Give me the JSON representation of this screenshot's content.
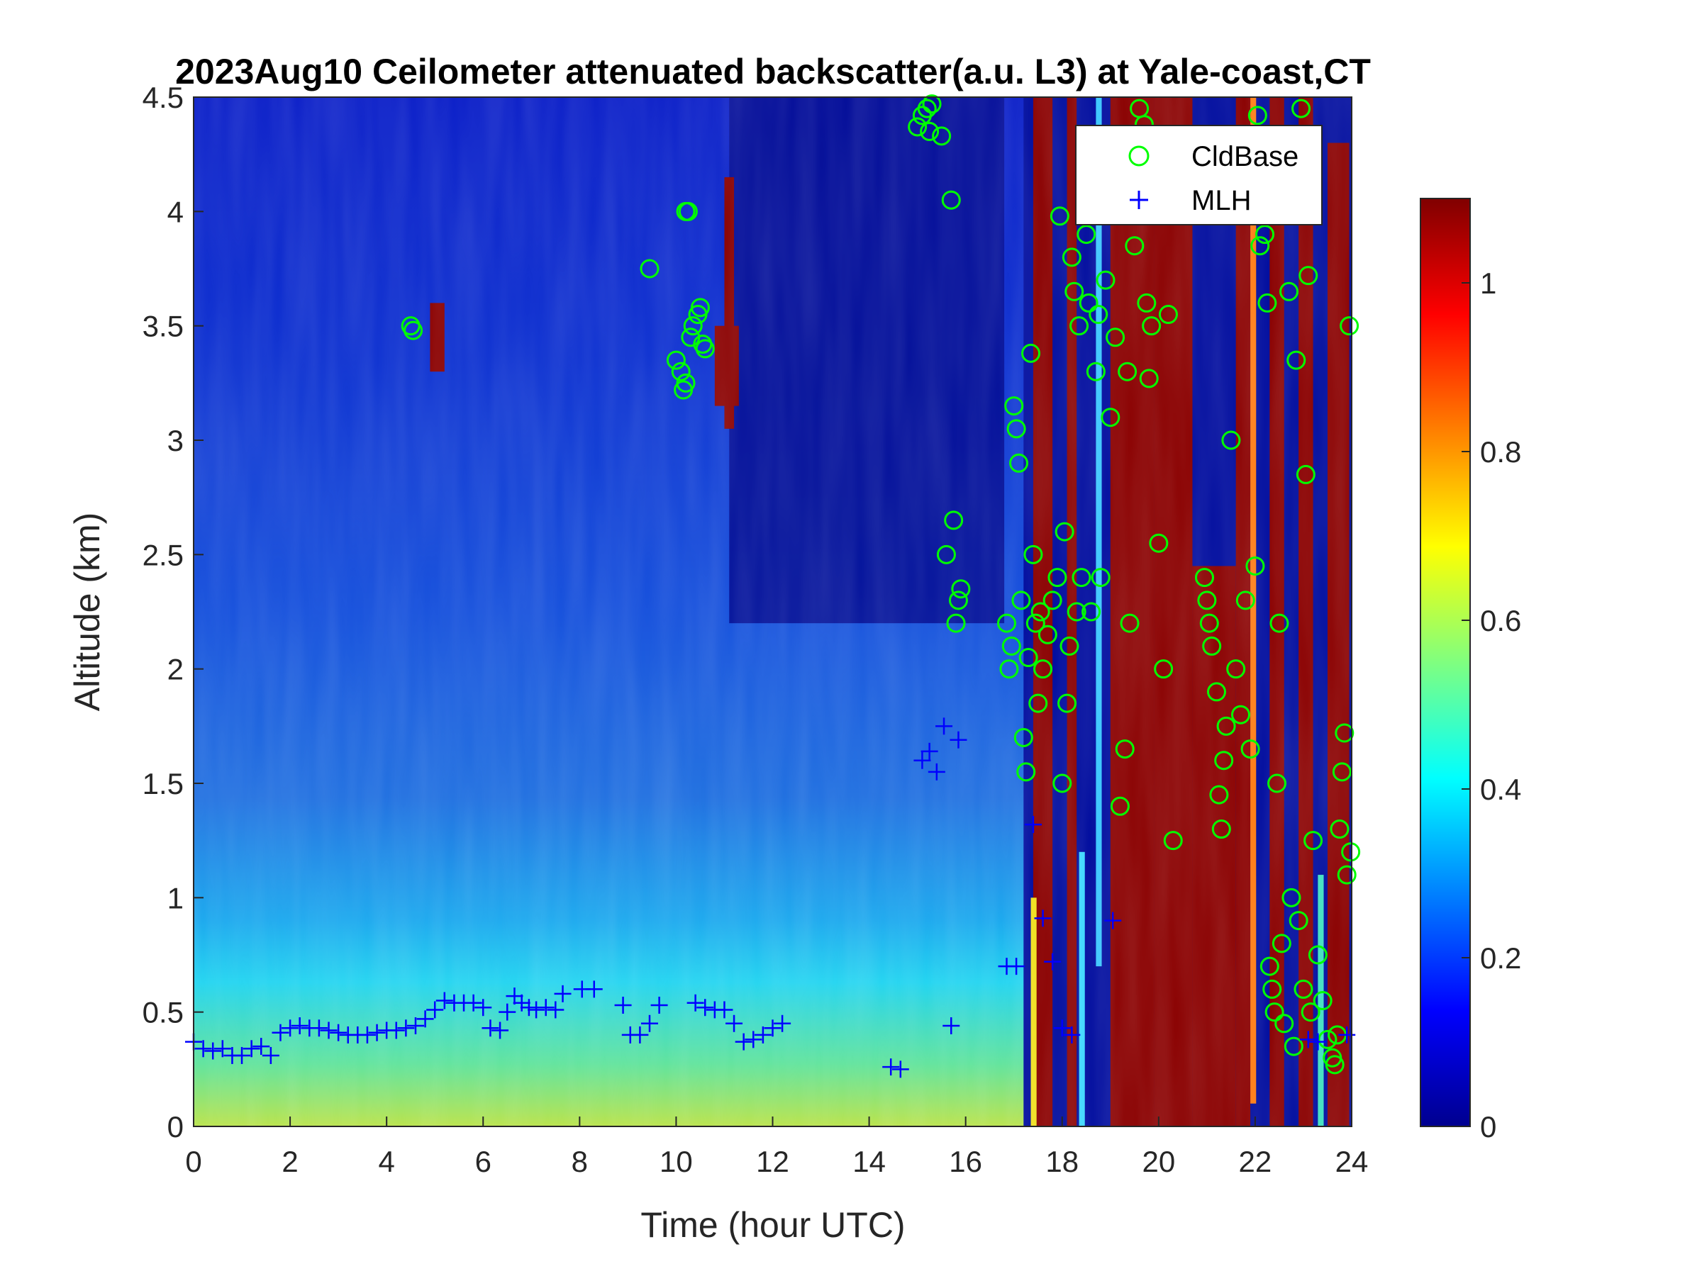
{
  "chart_data": {
    "type": "heatmap",
    "title": "2023Aug10 Ceilometer attenuated backscatter(a.u. L3) at Yale-coast,CT",
    "xlabel": "Time (hour UTC)",
    "ylabel": "Altitude (km)",
    "xlim": [
      0,
      24
    ],
    "ylim": [
      0,
      4.5
    ],
    "xticks": [
      0,
      2,
      4,
      6,
      8,
      10,
      12,
      14,
      16,
      18,
      20,
      22,
      24
    ],
    "yticks": [
      0,
      0.5,
      1,
      1.5,
      2,
      2.5,
      3,
      3.5,
      4,
      4.5
    ],
    "xtick_labels": [
      "0",
      "2",
      "4",
      "6",
      "8",
      "10",
      "12",
      "14",
      "16",
      "18",
      "20",
      "22",
      "24"
    ],
    "ytick_labels": [
      "0",
      "0.5",
      "1",
      "1.5",
      "2",
      "2.5",
      "3",
      "3.5",
      "4",
      "4.5"
    ],
    "colorbar": {
      "colormap": "jet",
      "clim": [
        0,
        1.1
      ],
      "ticks": [
        0,
        0.2,
        0.4,
        0.6,
        0.8,
        1
      ],
      "tick_labels": [
        "0",
        "0.2",
        "0.4",
        "0.6",
        "0.8",
        "1"
      ]
    },
    "legend": {
      "location": "top-right",
      "entries": [
        "CldBase",
        "MLH"
      ]
    },
    "series": [
      {
        "name": "CldBase",
        "marker": "circle",
        "color": "#00ff00",
        "points": [
          [
            4.5,
            3.5
          ],
          [
            4.55,
            3.48
          ],
          [
            9.45,
            3.75
          ],
          [
            10.0,
            3.35
          ],
          [
            10.1,
            3.3
          ],
          [
            10.15,
            3.22
          ],
          [
            10.2,
            4.0
          ],
          [
            10.25,
            4.0
          ],
          [
            10.3,
            3.45
          ],
          [
            10.35,
            3.5
          ],
          [
            10.45,
            3.55
          ],
          [
            10.5,
            3.58
          ],
          [
            10.55,
            3.42
          ],
          [
            10.6,
            3.4
          ],
          [
            10.2,
            3.25
          ],
          [
            15.0,
            4.37
          ],
          [
            15.1,
            4.42
          ],
          [
            15.2,
            4.45
          ],
          [
            15.25,
            4.35
          ],
          [
            15.3,
            4.47
          ],
          [
            15.5,
            4.33
          ],
          [
            15.6,
            2.5
          ],
          [
            15.7,
            4.05
          ],
          [
            15.75,
            2.65
          ],
          [
            15.8,
            2.2
          ],
          [
            15.85,
            2.3
          ],
          [
            15.9,
            2.35
          ],
          [
            16.85,
            2.2
          ],
          [
            16.9,
            2.0
          ],
          [
            16.95,
            2.1
          ],
          [
            17.0,
            3.15
          ],
          [
            17.05,
            3.05
          ],
          [
            17.1,
            2.9
          ],
          [
            17.15,
            2.3
          ],
          [
            17.2,
            1.7
          ],
          [
            17.25,
            1.55
          ],
          [
            17.3,
            2.05
          ],
          [
            17.35,
            3.38
          ],
          [
            17.4,
            2.5
          ],
          [
            17.45,
            2.2
          ],
          [
            17.5,
            1.85
          ],
          [
            17.55,
            2.25
          ],
          [
            17.6,
            2.0
          ],
          [
            17.7,
            2.15
          ],
          [
            17.8,
            2.3
          ],
          [
            17.9,
            2.4
          ],
          [
            17.95,
            3.98
          ],
          [
            18.0,
            1.5
          ],
          [
            18.05,
            2.6
          ],
          [
            18.1,
            1.85
          ],
          [
            18.15,
            2.1
          ],
          [
            18.2,
            3.8
          ],
          [
            18.25,
            3.65
          ],
          [
            18.3,
            2.25
          ],
          [
            18.35,
            3.5
          ],
          [
            18.4,
            2.4
          ],
          [
            18.5,
            3.9
          ],
          [
            18.55,
            3.6
          ],
          [
            18.6,
            2.25
          ],
          [
            18.7,
            3.3
          ],
          [
            18.75,
            3.55
          ],
          [
            18.8,
            2.4
          ],
          [
            18.9,
            3.7
          ],
          [
            19.0,
            3.1
          ],
          [
            19.1,
            3.45
          ],
          [
            19.2,
            1.4
          ],
          [
            19.3,
            1.65
          ],
          [
            19.35,
            3.3
          ],
          [
            19.4,
            2.2
          ],
          [
            19.5,
            3.85
          ],
          [
            19.6,
            4.45
          ],
          [
            19.7,
            4.38
          ],
          [
            19.75,
            3.6
          ],
          [
            19.8,
            3.27
          ],
          [
            19.85,
            3.5
          ],
          [
            20.0,
            2.55
          ],
          [
            20.1,
            2.0
          ],
          [
            20.2,
            3.55
          ],
          [
            20.3,
            1.25
          ],
          [
            20.95,
            2.4
          ],
          [
            21.0,
            2.3
          ],
          [
            21.05,
            2.2
          ],
          [
            21.1,
            2.1
          ],
          [
            21.2,
            1.9
          ],
          [
            21.25,
            1.45
          ],
          [
            21.3,
            1.3
          ],
          [
            21.35,
            1.6
          ],
          [
            21.4,
            1.75
          ],
          [
            21.5,
            3.0
          ],
          [
            21.6,
            2.0
          ],
          [
            21.7,
            1.8
          ],
          [
            21.8,
            2.3
          ],
          [
            21.9,
            1.65
          ],
          [
            22.0,
            2.45
          ],
          [
            22.05,
            4.42
          ],
          [
            22.1,
            3.85
          ],
          [
            22.2,
            3.9
          ],
          [
            22.25,
            3.6
          ],
          [
            22.3,
            0.7
          ],
          [
            22.35,
            0.6
          ],
          [
            22.4,
            0.5
          ],
          [
            22.45,
            1.5
          ],
          [
            22.5,
            2.2
          ],
          [
            22.55,
            0.8
          ],
          [
            22.6,
            0.45
          ],
          [
            22.7,
            3.65
          ],
          [
            22.75,
            1.0
          ],
          [
            22.8,
            0.35
          ],
          [
            22.85,
            3.35
          ],
          [
            22.9,
            0.9
          ],
          [
            22.95,
            4.45
          ],
          [
            23.0,
            0.6
          ],
          [
            23.05,
            2.85
          ],
          [
            23.1,
            3.72
          ],
          [
            23.15,
            0.5
          ],
          [
            23.2,
            1.25
          ],
          [
            23.3,
            0.75
          ],
          [
            23.4,
            0.55
          ],
          [
            23.5,
            0.38
          ],
          [
            23.6,
            0.3
          ],
          [
            23.65,
            0.27
          ],
          [
            23.7,
            0.4
          ],
          [
            23.75,
            1.3
          ],
          [
            23.8,
            1.55
          ],
          [
            23.85,
            1.72
          ],
          [
            23.9,
            1.1
          ],
          [
            23.95,
            3.5
          ],
          [
            23.98,
            1.2
          ]
        ]
      },
      {
        "name": "MLH",
        "marker": "plus",
        "color": "#0000ff",
        "points": [
          [
            0.0,
            0.37
          ],
          [
            0.2,
            0.34
          ],
          [
            0.4,
            0.33
          ],
          [
            0.6,
            0.34
          ],
          [
            0.8,
            0.31
          ],
          [
            1.0,
            0.31
          ],
          [
            1.2,
            0.34
          ],
          [
            1.4,
            0.35
          ],
          [
            1.6,
            0.31
          ],
          [
            1.8,
            0.41
          ],
          [
            2.0,
            0.43
          ],
          [
            2.2,
            0.44
          ],
          [
            2.4,
            0.43
          ],
          [
            2.6,
            0.43
          ],
          [
            2.8,
            0.42
          ],
          [
            3.0,
            0.41
          ],
          [
            3.2,
            0.4
          ],
          [
            3.4,
            0.4
          ],
          [
            3.6,
            0.4
          ],
          [
            3.8,
            0.41
          ],
          [
            4.0,
            0.42
          ],
          [
            4.2,
            0.42
          ],
          [
            4.4,
            0.43
          ],
          [
            4.6,
            0.44
          ],
          [
            4.8,
            0.47
          ],
          [
            5.0,
            0.51
          ],
          [
            5.2,
            0.55
          ],
          [
            5.4,
            0.54
          ],
          [
            5.6,
            0.54
          ],
          [
            5.8,
            0.54
          ],
          [
            6.0,
            0.52
          ],
          [
            6.15,
            0.43
          ],
          [
            6.35,
            0.42
          ],
          [
            6.5,
            0.5
          ],
          [
            6.65,
            0.57
          ],
          [
            6.8,
            0.54
          ],
          [
            6.95,
            0.52
          ],
          [
            7.1,
            0.51
          ],
          [
            7.3,
            0.52
          ],
          [
            7.5,
            0.51
          ],
          [
            7.65,
            0.58
          ],
          [
            8.05,
            0.6
          ],
          [
            8.3,
            0.6
          ],
          [
            8.9,
            0.53
          ],
          [
            9.05,
            0.4
          ],
          [
            9.25,
            0.4
          ],
          [
            9.45,
            0.45
          ],
          [
            9.65,
            0.53
          ],
          [
            10.4,
            0.54
          ],
          [
            10.6,
            0.52
          ],
          [
            10.8,
            0.51
          ],
          [
            11.0,
            0.51
          ],
          [
            11.2,
            0.45
          ],
          [
            11.4,
            0.37
          ],
          [
            11.6,
            0.38
          ],
          [
            11.8,
            0.4
          ],
          [
            12.0,
            0.43
          ],
          [
            12.2,
            0.45
          ],
          [
            14.45,
            0.26
          ],
          [
            14.65,
            0.25
          ],
          [
            15.1,
            1.6
          ],
          [
            15.25,
            1.64
          ],
          [
            15.4,
            1.55
          ],
          [
            15.55,
            1.75
          ],
          [
            15.7,
            0.44
          ],
          [
            15.85,
            1.69
          ],
          [
            16.85,
            0.7
          ],
          [
            17.05,
            0.7
          ],
          [
            17.4,
            1.32
          ],
          [
            17.6,
            0.91
          ],
          [
            17.8,
            0.72
          ],
          [
            18.0,
            0.43
          ],
          [
            18.2,
            0.4
          ],
          [
            19.05,
            0.9
          ],
          [
            23.1,
            0.38
          ],
          [
            23.3,
            0.37
          ],
          [
            23.9,
            0.4
          ]
        ]
      }
    ]
  }
}
